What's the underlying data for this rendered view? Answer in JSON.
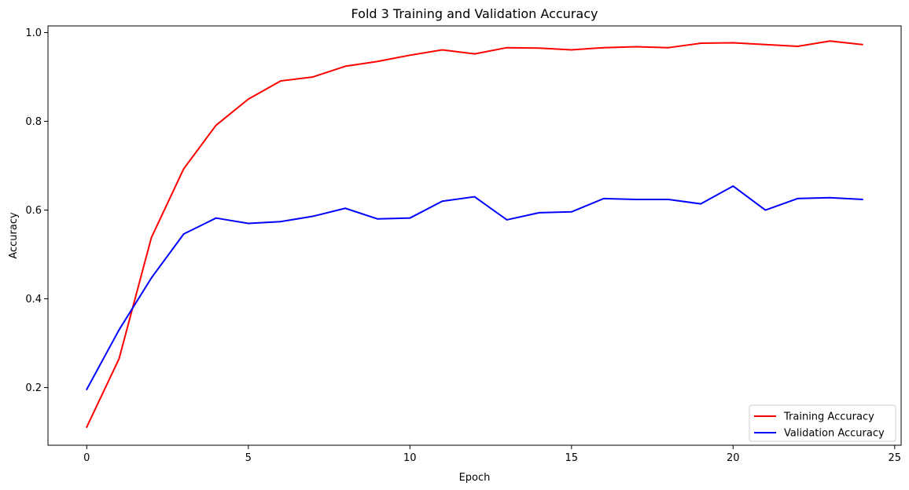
{
  "chart_data": {
    "type": "line",
    "title": "Fold 3 Training and Validation Accuracy",
    "xlabel": "Epoch",
    "ylabel": "Accuracy",
    "xlim": [
      -1.2,
      25.2
    ],
    "ylim": [
      0.07,
      1.015
    ],
    "xticks": [
      0,
      5,
      10,
      15,
      20,
      25
    ],
    "yticks": [
      0.2,
      0.4,
      0.6,
      0.8,
      1.0
    ],
    "ytick_labels": [
      "0.2",
      "0.4",
      "0.6",
      "0.8",
      "1.0"
    ],
    "grid": false,
    "legend_position": "lower-right",
    "x": [
      0,
      1,
      2,
      3,
      4,
      5,
      6,
      7,
      8,
      9,
      10,
      11,
      12,
      13,
      14,
      15,
      16,
      17,
      18,
      19,
      20,
      21,
      22,
      23,
      24
    ],
    "series": [
      {
        "name": "Training Accuracy",
        "color": "#ff0000",
        "values": [
          0.111,
          0.265,
          0.538,
          0.693,
          0.791,
          0.85,
          0.891,
          0.9,
          0.924,
          0.935,
          0.949,
          0.961,
          0.952,
          0.966,
          0.965,
          0.961,
          0.966,
          0.968,
          0.966,
          0.976,
          0.977,
          0.973,
          0.969,
          0.981,
          0.973
        ]
      },
      {
        "name": "Validation Accuracy",
        "color": "#0000ff",
        "values": [
          0.196,
          0.33,
          0.447,
          0.546,
          0.582,
          0.57,
          0.574,
          0.586,
          0.604,
          0.58,
          0.582,
          0.62,
          0.63,
          0.578,
          0.594,
          0.596,
          0.626,
          0.624,
          0.624,
          0.614,
          0.654,
          0.6,
          0.626,
          0.628,
          0.624
        ]
      }
    ]
  }
}
